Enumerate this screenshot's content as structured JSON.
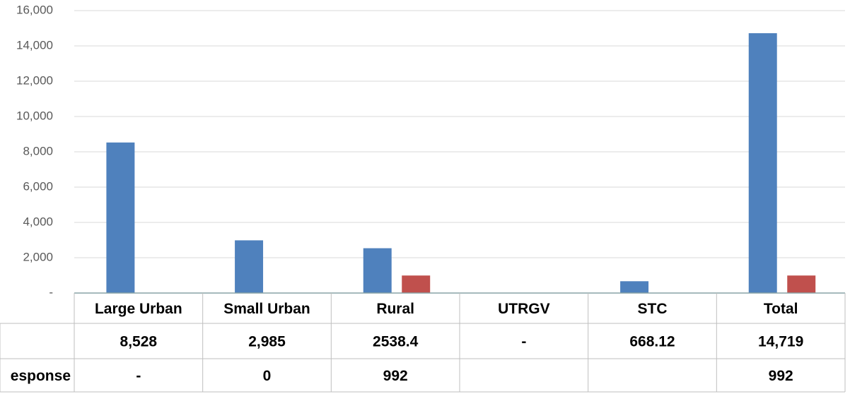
{
  "chart_data": {
    "type": "bar",
    "categories": [
      "Large Urban",
      "Small Urban",
      "Rural",
      "UTRGV",
      "STC",
      "Total"
    ],
    "series": [
      {
        "color": "#4f81bd",
        "values": [
          8528,
          2985,
          2538.4,
          null,
          668.12,
          14719
        ],
        "value_labels": [
          "8,528",
          "2,985",
          "2538.4",
          "-",
          "668.12",
          "14,719"
        ]
      },
      {
        "name": "esponse",
        "color": "#c0504d",
        "values": [
          null,
          0,
          992,
          null,
          null,
          992
        ],
        "value_labels": [
          "-",
          "0",
          "992",
          null,
          null,
          "992"
        ]
      }
    ],
    "ylim": [
      0,
      16000
    ],
    "yticks": [
      {
        "value": 0,
        "label": "-"
      },
      {
        "value": 2000,
        "label": "2,000"
      },
      {
        "value": 4000,
        "label": "4,000"
      },
      {
        "value": 6000,
        "label": "6,000"
      },
      {
        "value": 8000,
        "label": "8,000"
      },
      {
        "value": 10000,
        "label": "10,000"
      },
      {
        "value": 12000,
        "label": "12,000"
      },
      {
        "value": 14000,
        "label": "14,000"
      },
      {
        "value": 16000,
        "label": "16,000"
      }
    ],
    "grid": true
  }
}
